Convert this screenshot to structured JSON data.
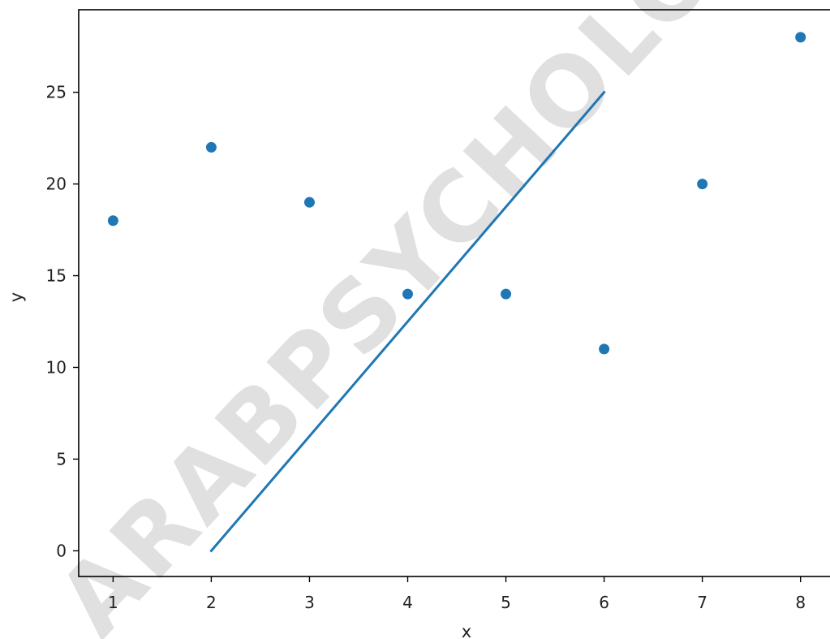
{
  "chart_data": {
    "type": "scatter",
    "xlabel": "x",
    "ylabel": "y",
    "xlim": [
      0.65,
      8.3
    ],
    "ylim": [
      -1.4,
      29.5
    ],
    "x_ticks": [
      1,
      2,
      3,
      4,
      5,
      6,
      7,
      8
    ],
    "y_ticks": [
      0,
      5,
      10,
      15,
      20,
      25
    ],
    "grid": false,
    "points": {
      "color": "#1f77b4",
      "x": [
        1,
        2,
        3,
        4,
        5,
        6,
        7,
        8
      ],
      "y": [
        18,
        22,
        19,
        14,
        14,
        11,
        20,
        28
      ]
    },
    "line": {
      "color": "#1f77b4",
      "x": [
        2,
        6
      ],
      "y": [
        0,
        25
      ]
    },
    "watermark": "ARABPSYCHOLOGY"
  }
}
